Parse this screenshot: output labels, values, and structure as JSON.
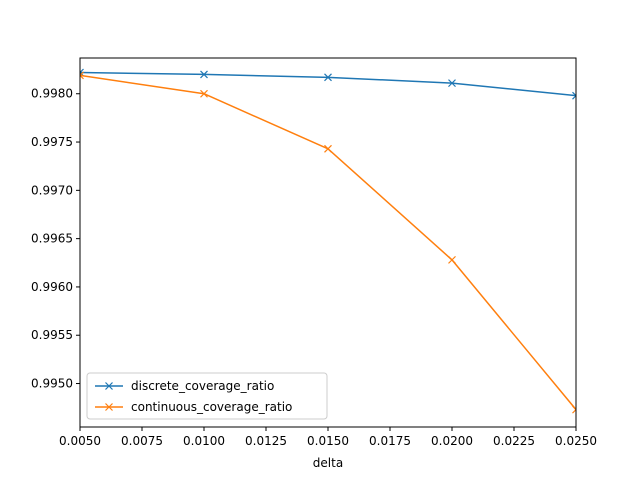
{
  "chart_data": {
    "type": "line",
    "title": "",
    "xlabel": "delta",
    "ylabel": "",
    "xlim": [
      0.005,
      0.025
    ],
    "ylim": [
      0.99455,
      0.99837
    ],
    "x": [
      0.005,
      0.01,
      0.015,
      0.02,
      0.025
    ],
    "x_ticks": [
      "0.0050",
      "0.0075",
      "0.0100",
      "0.0125",
      "0.0150",
      "0.0175",
      "0.0200",
      "0.0225",
      "0.0250"
    ],
    "x_tick_values": [
      0.005,
      0.0075,
      0.01,
      0.0125,
      0.015,
      0.0175,
      0.02,
      0.0225,
      0.025
    ],
    "y_ticks": [
      "0.9950",
      "0.9955",
      "0.9960",
      "0.9965",
      "0.9970",
      "0.9975",
      "0.9980"
    ],
    "y_tick_values": [
      0.995,
      0.9955,
      0.996,
      0.9965,
      0.997,
      0.9975,
      0.998
    ],
    "grid": false,
    "legend_position": "lower-left",
    "series": [
      {
        "name": "discrete_coverage_ratio",
        "color": "#1f77b4",
        "marker": "x",
        "values": [
          0.99822,
          0.9982,
          0.99817,
          0.99811,
          0.99798
        ]
      },
      {
        "name": "continuous_coverage_ratio",
        "color": "#ff7f0e",
        "marker": "x",
        "values": [
          0.99819,
          0.998,
          0.99743,
          0.99628,
          0.99473
        ]
      }
    ]
  }
}
